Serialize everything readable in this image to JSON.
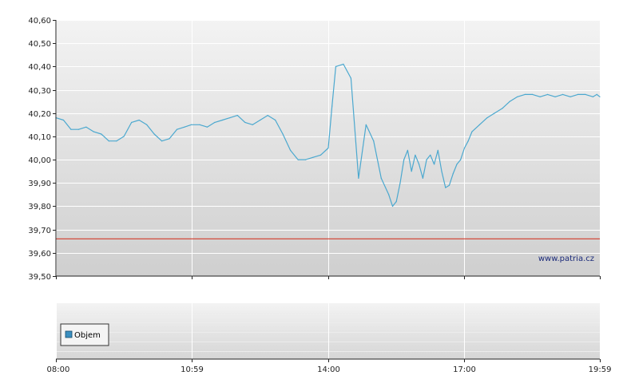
{
  "watermark": "www.patria.cz",
  "legend": {
    "label": "Objem"
  },
  "colors": {
    "price_line": "#4ba8cf",
    "reference_line": "#d23a2a",
    "legend_swatch": "#3a8fc0"
  },
  "chart_data": [
    {
      "type": "line",
      "grid": true,
      "xlim": [
        "08:00",
        "19:59"
      ],
      "x_ticks": [
        "08:00",
        "10:59",
        "14:00",
        "17:00",
        "19:59"
      ],
      "ylim": [
        39.5,
        40.6
      ],
      "y_ticks": [
        "39,50",
        "39,60",
        "39,70",
        "39,80",
        "39,90",
        "40,00",
        "40,10",
        "40,20",
        "40,30",
        "40,40",
        "40,50",
        "40,60"
      ],
      "series": [
        {
          "x": [
            "08:00",
            "08:10",
            "08:20",
            "08:30",
            "08:40",
            "08:50",
            "09:00",
            "09:10",
            "09:20",
            "09:30",
            "09:40",
            "09:50",
            "10:00",
            "10:10",
            "10:20",
            "10:30",
            "10:40",
            "10:50",
            "10:59",
            "11:10",
            "11:20",
            "11:30",
            "11:40",
            "11:50",
            "12:00",
            "12:10",
            "12:20",
            "12:30",
            "12:40",
            "12:50",
            "13:00",
            "13:10",
            "13:20",
            "13:30",
            "13:40",
            "13:50",
            "14:00",
            "14:05",
            "14:10",
            "14:20",
            "14:30",
            "14:40",
            "14:50",
            "15:00",
            "15:10",
            "15:20",
            "15:25",
            "15:30",
            "15:35",
            "15:40",
            "15:45",
            "15:50",
            "15:55",
            "16:00",
            "16:05",
            "16:10",
            "16:15",
            "16:20",
            "16:25",
            "16:30",
            "16:35",
            "16:40",
            "16:45",
            "16:50",
            "16:55",
            "17:00",
            "17:05",
            "17:10",
            "17:20",
            "17:30",
            "17:40",
            "17:50",
            "18:00",
            "18:10",
            "18:20",
            "18:30",
            "18:40",
            "18:50",
            "19:00",
            "19:10",
            "19:20",
            "19:30",
            "19:40",
            "19:50",
            "19:55",
            "19:59"
          ],
          "values": [
            40.18,
            40.17,
            40.13,
            40.13,
            40.14,
            40.12,
            40.11,
            40.08,
            40.08,
            40.1,
            40.16,
            40.17,
            40.15,
            40.11,
            40.08,
            40.09,
            40.13,
            40.14,
            40.15,
            40.15,
            40.14,
            40.16,
            40.17,
            40.18,
            40.19,
            40.16,
            40.15,
            40.17,
            40.19,
            40.17,
            40.11,
            40.04,
            40.0,
            40.0,
            40.01,
            40.02,
            40.05,
            40.23,
            40.4,
            40.41,
            40.35,
            39.92,
            40.15,
            40.08,
            39.92,
            39.85,
            39.8,
            39.82,
            39.9,
            40.0,
            40.04,
            39.95,
            40.02,
            39.98,
            39.92,
            40.0,
            40.02,
            39.98,
            40.04,
            39.95,
            39.88,
            39.89,
            39.94,
            39.98,
            40.0,
            40.05,
            40.08,
            40.12,
            40.15,
            40.18,
            40.2,
            40.22,
            40.25,
            40.27,
            40.28,
            40.28,
            40.27,
            40.28,
            40.27,
            40.28,
            40.27,
            40.28,
            40.28,
            40.27,
            40.28,
            40.27
          ],
          "color": "#4ba8cf"
        },
        {
          "x": [
            "08:00",
            "19:59"
          ],
          "values": [
            39.66,
            39.66
          ],
          "color": "#d23a2a"
        }
      ]
    },
    {
      "type": "bar",
      "grid": true,
      "legend_position": "top-left",
      "series": [
        {
          "name": "Objem",
          "values": []
        }
      ]
    }
  ]
}
